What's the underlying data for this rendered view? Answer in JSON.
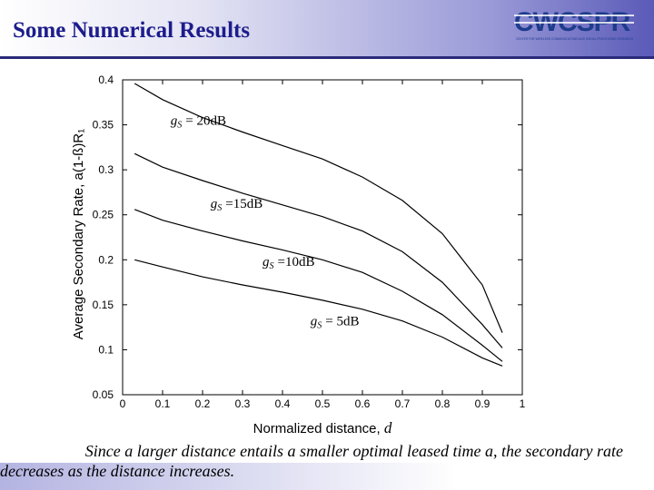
{
  "slide": {
    "title": "Some Numerical Results",
    "caption_line1": "Since a larger distance entails a smaller optimal leased time a, the secondary rate",
    "caption_line2": "decreases as the distance increases.",
    "logo_text": "CWCSPR",
    "logo_subtext": "CENTER FOR WIRELESS COMMUNICATIONS AND SIGNAL PROCESSING RESEARCH"
  },
  "colors": {
    "title": "#1c1c8c",
    "header_gradient_end": "#5a5ab8",
    "logo": "#1e3c8c",
    "curves": "#000000"
  },
  "chart_data": {
    "type": "line",
    "title": "",
    "xlabel": "Normalized distance, d",
    "ylabel": "Average Secondary Rate,  a(1-ß)R₁",
    "xlim": [
      0,
      1
    ],
    "ylim": [
      0.05,
      0.4
    ],
    "x_ticks": [
      "0",
      "0.1",
      "0.2",
      "0.3",
      "0.4",
      "0.5",
      "0.6",
      "0.7",
      "0.8",
      "0.9",
      "1"
    ],
    "y_ticks": [
      "0.05",
      "0.1",
      "0.15",
      "0.2",
      "0.25",
      "0.3",
      "0.35",
      "0.4"
    ],
    "grid": false,
    "legend": "none",
    "x": [
      0.03,
      0.1,
      0.2,
      0.3,
      0.4,
      0.5,
      0.6,
      0.7,
      0.8,
      0.9,
      0.95
    ],
    "series": [
      {
        "name": "gS = 20dB",
        "label_sub": "S",
        "label_g": "g",
        "label_rest": "= 20dB",
        "values": [
          0.396,
          0.378,
          0.358,
          0.342,
          0.327,
          0.312,
          0.292,
          0.266,
          0.229,
          0.172,
          0.119
        ]
      },
      {
        "name": "gS =15dB",
        "label_sub": "S",
        "label_g": "g",
        "label_rest": "=15dB",
        "values": [
          0.318,
          0.303,
          0.288,
          0.274,
          0.261,
          0.248,
          0.232,
          0.209,
          0.175,
          0.128,
          0.102
        ]
      },
      {
        "name": "gS =10dB",
        "label_sub": "S",
        "label_g": "g",
        "label_rest": "=10dB",
        "values": [
          0.256,
          0.244,
          0.232,
          0.221,
          0.211,
          0.2,
          0.186,
          0.165,
          0.139,
          0.105,
          0.087
        ]
      },
      {
        "name": "gS = 5dB",
        "label_sub": "S",
        "label_g": "g",
        "label_rest": "= 5dB",
        "values": [
          0.2,
          0.192,
          0.181,
          0.172,
          0.164,
          0.155,
          0.145,
          0.132,
          0.114,
          0.091,
          0.082
        ]
      }
    ],
    "annotations": [
      {
        "series": 0,
        "x": 0.12,
        "y": 0.35
      },
      {
        "series": 1,
        "x": 0.22,
        "y": 0.258
      },
      {
        "series": 2,
        "x": 0.35,
        "y": 0.193
      },
      {
        "series": 3,
        "x": 0.47,
        "y": 0.127
      }
    ]
  }
}
